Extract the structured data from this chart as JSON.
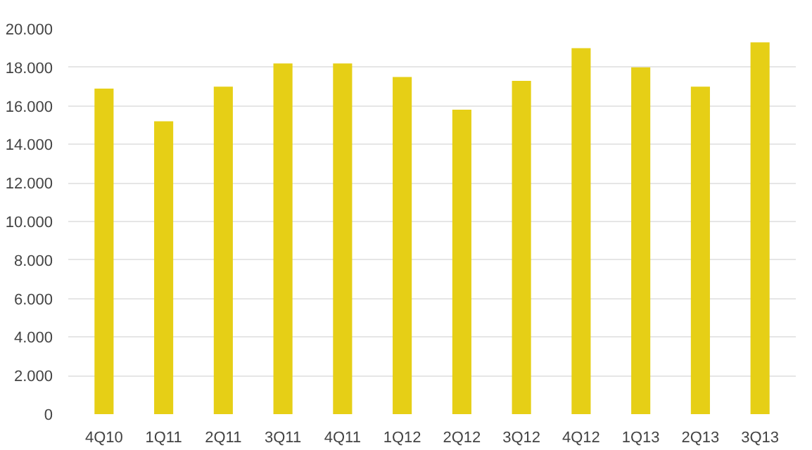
{
  "chart_data": {
    "type": "bar",
    "categories": [
      "4Q10",
      "1Q11",
      "2Q11",
      "3Q11",
      "4Q11",
      "1Q12",
      "2Q12",
      "3Q12",
      "4Q12",
      "1Q13",
      "2Q13",
      "3Q13"
    ],
    "values": [
      16900,
      15200,
      17000,
      18200,
      18200,
      17500,
      15800,
      17300,
      19000,
      18000,
      17000,
      19300
    ],
    "color": "#e6cf16",
    "ylim": [
      0,
      20000
    ],
    "yticks": [
      {
        "value": 0,
        "label": "0"
      },
      {
        "value": 2000,
        "label": "2.000"
      },
      {
        "value": 4000,
        "label": "4.000"
      },
      {
        "value": 6000,
        "label": "6.000"
      },
      {
        "value": 8000,
        "label": "8.000"
      },
      {
        "value": 10000,
        "label": "10.000"
      },
      {
        "value": 12000,
        "label": "12.000"
      },
      {
        "value": 14000,
        "label": "14.000"
      },
      {
        "value": 16000,
        "label": "16.000"
      },
      {
        "value": 18000,
        "label": "18.000"
      },
      {
        "value": 20000,
        "label": "20.000"
      }
    ],
    "grid": "y"
  }
}
